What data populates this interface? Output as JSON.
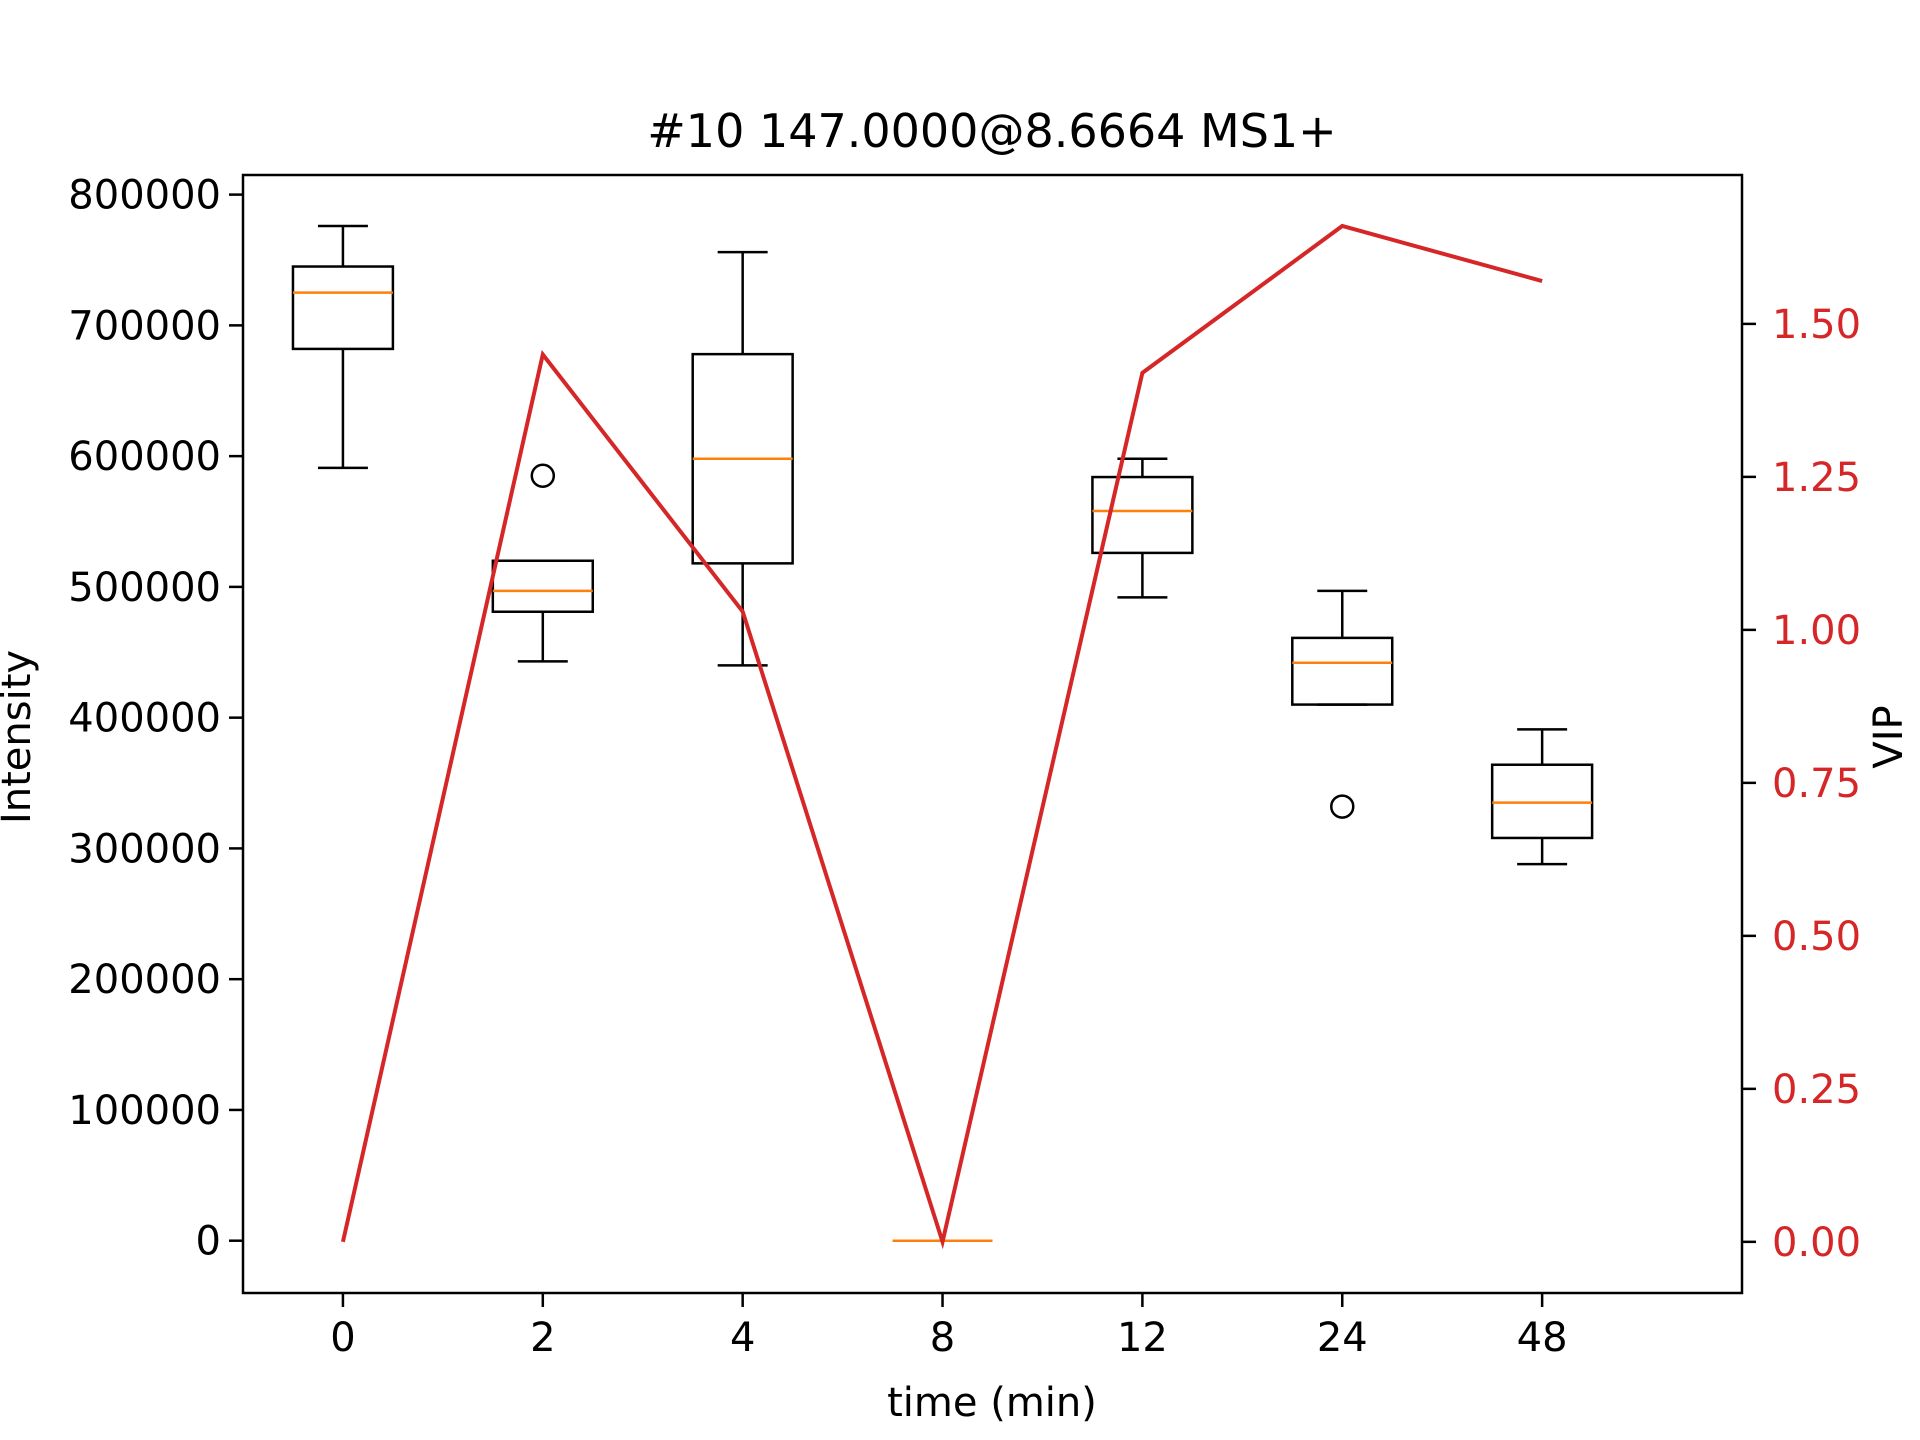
{
  "chart_data": {
    "type": "box",
    "title": "#10 147.0000@8.6664 MS1+",
    "xlabel": "time (min)",
    "ylabel": "Intensity",
    "y2label": "VIP",
    "categories": [
      "0",
      "2",
      "4",
      "8",
      "12",
      "24",
      "48"
    ],
    "ylim": [
      -40000,
      815000
    ],
    "y2lim": [
      -0.0836,
      1.7433
    ],
    "yticks": [
      "0",
      "100000",
      "200000",
      "300000",
      "400000",
      "500000",
      "600000",
      "700000",
      "800000"
    ],
    "y2ticks": [
      "0.00",
      "0.25",
      "0.50",
      "0.75",
      "1.00",
      "1.25",
      "1.50"
    ],
    "grid": false,
    "boxes": [
      {
        "category": "0",
        "whisker_low": 591000,
        "q1": 682000,
        "median": 725000,
        "q3": 745000,
        "whisker_high": 776000,
        "outliers": []
      },
      {
        "category": "2",
        "whisker_low": 443000,
        "q1": 481000,
        "median": 497000,
        "q3": 520000,
        "whisker_high": 520000,
        "outliers": [
          585000
        ]
      },
      {
        "category": "4",
        "whisker_low": 440000,
        "q1": 518000,
        "median": 598000,
        "q3": 678000,
        "whisker_high": 756000,
        "outliers": []
      },
      {
        "category": "8",
        "whisker_low": 0,
        "q1": 0,
        "median": 0,
        "q3": 0,
        "whisker_high": 0,
        "outliers": []
      },
      {
        "category": "12",
        "whisker_low": 492000,
        "q1": 526000,
        "median": 558000,
        "q3": 584000,
        "whisker_high": 598000,
        "outliers": []
      },
      {
        "category": "24",
        "whisker_low": 410000,
        "q1": 410000,
        "median": 442000,
        "q3": 461000,
        "whisker_high": 497000,
        "outliers": [
          332000
        ]
      },
      {
        "category": "48",
        "whisker_low": 288000,
        "q1": 308000,
        "median": 335000,
        "q3": 364000,
        "whisker_high": 391000,
        "outliers": []
      }
    ],
    "vip_series": {
      "name": "VIP",
      "axis": "right",
      "values": [
        0.0,
        1.45,
        1.03,
        0.0,
        1.42,
        1.66,
        1.57
      ]
    },
    "colors": {
      "box": "#000000",
      "median": "#ff7f0e",
      "vip_line": "#d62728",
      "right_axis": "#d62728"
    }
  }
}
